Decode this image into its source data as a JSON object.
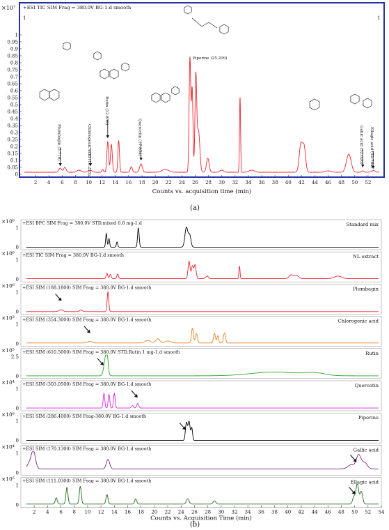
{
  "chart_data": [
    {
      "type": "line",
      "panel_label": "(a)",
      "title": "+ESI TIC SIM Frag = 380.0V BG-1.d smooth",
      "xlabel": "Counts vs. acquisition time (min)",
      "ylabel_multiplier": "×10⁷",
      "xlim": [
        0,
        54
      ],
      "ylim": [
        0,
        1.15
      ],
      "x_ticks": [
        2,
        4,
        6,
        8,
        10,
        12,
        14,
        16,
        18,
        20,
        22,
        24,
        26,
        28,
        30,
        32,
        34,
        36,
        38,
        40,
        42,
        44,
        46,
        48,
        50,
        52
      ],
      "y_ticks": [
        0,
        0.05,
        0.1,
        0.15,
        0.2,
        0.25,
        0.3,
        0.35,
        0.4,
        0.45,
        0.5,
        0.55,
        0.6,
        0.65,
        0.7,
        0.75,
        0.8,
        0.85,
        0.9,
        0.95,
        1
      ],
      "y_tick_labels": [
        "0",
        "0.05",
        "0.1",
        "0.15",
        "0.2",
        "0.25",
        "0.3",
        "0.35",
        "0.4",
        "0.45",
        "0.5",
        "0.55",
        "0.6",
        "0.65",
        "0.7",
        "0.75",
        "0.8",
        "0.85",
        "0.9",
        "0.95",
        "1"
      ],
      "series": [
        {
          "color": "#e8242b",
          "baseline": 0.015,
          "peaks": [
            {
              "t": 5.7,
              "h": 0.03,
              "w": 0.2
            },
            {
              "t": 6.4,
              "h": 0.035,
              "w": 0.2
            },
            {
              "t": 8.5,
              "h": 0.015,
              "w": 0.3
            },
            {
              "t": 10.2,
              "h": 0.015,
              "w": 0.3
            },
            {
              "t": 12.1,
              "h": 0.02,
              "w": 0.12
            },
            {
              "t": 12.85,
              "h": 0.22,
              "w": 0.13
            },
            {
              "t": 13.4,
              "h": 0.2,
              "w": 0.14
            },
            {
              "t": 14.5,
              "h": 0.225,
              "w": 0.12
            },
            {
              "t": 16.4,
              "h": 0.04,
              "w": 0.15
            },
            {
              "t": 17.85,
              "h": 0.06,
              "w": 0.2
            },
            {
              "t": 21.5,
              "h": 0.02,
              "w": 0.5
            },
            {
              "t": 25.21,
              "h": 0.82,
              "w": 0.12
            },
            {
              "t": 25.55,
              "h": 0.6,
              "w": 0.12
            },
            {
              "t": 26.1,
              "h": 0.68,
              "w": 0.13
            },
            {
              "t": 26.5,
              "h": 0.3,
              "w": 0.2
            },
            {
              "t": 27.9,
              "h": 0.1,
              "w": 0.2
            },
            {
              "t": 30.0,
              "h": 0.015,
              "w": 0.3
            },
            {
              "t": 32.75,
              "h": 0.54,
              "w": 0.08
            },
            {
              "t": 34.5,
              "h": 0.015,
              "w": 0.4
            },
            {
              "t": 41.9,
              "h": 0.2,
              "w": 0.25
            },
            {
              "t": 42.4,
              "h": 0.17,
              "w": 0.22
            },
            {
              "t": 46.0,
              "h": 0.01,
              "w": 0.4
            },
            {
              "t": 49.1,
              "h": 0.13,
              "w": 0.35
            },
            {
              "t": 51.2,
              "h": 0.01,
              "w": 0.2
            },
            {
              "t": 52.8,
              "h": 0.012,
              "w": 0.3
            }
          ]
        }
      ],
      "annotations": [
        {
          "text": "Plumbagin (5.716)",
          "x": 5.716,
          "y": 0.04
        },
        {
          "text": "Chlorogenic acid (10.255)",
          "x": 10.255,
          "y": 0.04
        },
        {
          "text": "Rutin (12.850)",
          "x": 12.85,
          "y": 0.24
        },
        {
          "text": "Quercetin (17.854)",
          "x": 17.854,
          "y": 0.08
        },
        {
          "text": "Piperine (25.209)",
          "x": 25.209,
          "y": 0.82
        },
        {
          "text": "Gallic acid (52.026)",
          "x": 51.2,
          "y": 0.03
        },
        {
          "text": "Ellagic acid (52.764)",
          "x": 52.764,
          "y": 0.02
        }
      ],
      "corner_marks": [
        "1",
        "1"
      ]
    },
    {
      "type": "line",
      "panel_label": "(b)",
      "xlabel": "Counts vs. Acquisition Time (min)",
      "xlim": [
        0,
        54
      ],
      "x_ticks": [
        2,
        4,
        6,
        8,
        10,
        12,
        14,
        16,
        18,
        20,
        22,
        24,
        26,
        28,
        30,
        32,
        34,
        36,
        38,
        40,
        42,
        44,
        46,
        48,
        50,
        52,
        54
      ],
      "tracks": [
        {
          "title": "+ESI BPC SIM Frag = 380.0V STD.mixed 0.6 mg-1.d",
          "compound": "Standard mix",
          "mult": "×10⁶",
          "ytop": "1",
          "ytick_labels": [
            "1",
            "0"
          ],
          "color": "#000000",
          "baseline": 0.02,
          "peaks": [
            {
              "t": 12.8,
              "h": 0.65,
              "w": 0.1
            },
            {
              "t": 13.2,
              "h": 0.4,
              "w": 0.1
            },
            {
              "t": 14.4,
              "h": 0.25,
              "w": 0.1
            },
            {
              "t": 17.6,
              "h": 0.92,
              "w": 0.12
            },
            {
              "t": 24.8,
              "h": 0.95,
              "w": 0.22
            },
            {
              "t": 25.3,
              "h": 0.55,
              "w": 0.18
            }
          ]
        },
        {
          "title": "+ESI TIC SIM Frag = 380.0V BG-1.d smooth",
          "compound": "NL extract",
          "mult": "×10⁶",
          "ytop": "1",
          "ytick_labels": [
            "1",
            "0"
          ],
          "color": "#e8242b",
          "baseline": 0.06,
          "peaks": [
            {
              "t": 12.9,
              "h": 0.25,
              "w": 0.12
            },
            {
              "t": 13.4,
              "h": 0.2,
              "w": 0.12
            },
            {
              "t": 14.5,
              "h": 0.22,
              "w": 0.12
            },
            {
              "t": 25.2,
              "h": 0.82,
              "w": 0.15
            },
            {
              "t": 25.7,
              "h": 0.6,
              "w": 0.15
            },
            {
              "t": 26.1,
              "h": 0.65,
              "w": 0.15
            },
            {
              "t": 27.9,
              "h": 0.12,
              "w": 0.2
            },
            {
              "t": 32.75,
              "h": 0.6,
              "w": 0.08
            },
            {
              "t": 40.5,
              "h": 0.18,
              "w": 0.3
            },
            {
              "t": 41.3,
              "h": 0.15,
              "w": 0.3
            },
            {
              "t": 47.5,
              "h": 0.12,
              "w": 0.5
            }
          ]
        },
        {
          "title": "+ESI SIM (188.1800) SIM Frag = 380.0V BG-1.d smooth",
          "compound": "Plumbagin",
          "mult": "×10⁶",
          "ytop": "1",
          "ytick_labels": [
            "1",
            "0"
          ],
          "color": "#e8242b",
          "baseline": 0.02,
          "peaks": [
            {
              "t": 6.0,
              "h": 0.08,
              "w": 0.3
            },
            {
              "t": 9.0,
              "h": 0.08,
              "w": 0.2
            },
            {
              "t": 13.05,
              "h": 0.95,
              "w": 0.12
            }
          ]
        },
        {
          "title": "+ESI SIM (354.3000) SIM Frag = 380.0V BG-1.d smooth",
          "compound": "Chlorogenic acid",
          "mult": "×10³",
          "ytop": "1",
          "ytick_labels": [
            "1",
            "0"
          ],
          "color": "#f07d1e",
          "baseline": 0.06,
          "peaks": [
            {
              "t": 10.3,
              "h": 0.08,
              "w": 0.3
            },
            {
              "t": 19.0,
              "h": 0.12,
              "w": 0.4
            },
            {
              "t": 20.5,
              "h": 0.2,
              "w": 0.3
            },
            {
              "t": 22.0,
              "h": 0.1,
              "w": 0.4
            },
            {
              "t": 25.7,
              "h": 0.7,
              "w": 0.15
            },
            {
              "t": 26.3,
              "h": 0.45,
              "w": 0.15
            },
            {
              "t": 29.0,
              "h": 0.45,
              "w": 0.15
            },
            {
              "t": 29.5,
              "h": 0.35,
              "w": 0.12
            },
            {
              "t": 30.5,
              "h": 0.48,
              "w": 0.15
            }
          ]
        },
        {
          "title": "+ESI SIM (610.5000) SIM Frag = 380.0V STD.Rutin 1 mg-1.d smooth",
          "compound": "Rutin",
          "mult": "×10⁵",
          "ytop": "2.5",
          "ytick_labels": [
            "2.5",
            "0"
          ],
          "color": "#2aa62a",
          "baseline": 0.03,
          "peaks": [
            {
              "t": 12.7,
              "h": 0.88,
              "w": 0.25
            },
            {
              "t": 12.95,
              "h": 0.5,
              "w": 0.15
            },
            {
              "t": 38.0,
              "h": 0.18,
              "w": 3.5
            },
            {
              "t": 44.0,
              "h": 0.12,
              "w": 1.5
            }
          ]
        },
        {
          "title": "+ESI SIM (303.0500) SIM Frag = 380.0V BG-1.d smooth",
          "compound": "Quercetin",
          "mult": "×10⁴",
          "ytop": "1",
          "ytick_labels": [
            "1",
            "0"
          ],
          "color": "#dd22dd",
          "baseline": 0.03,
          "peaks": [
            {
              "t": 12.45,
              "h": 0.7,
              "w": 0.12
            },
            {
              "t": 13.2,
              "h": 0.65,
              "w": 0.12
            },
            {
              "t": 14.0,
              "h": 0.7,
              "w": 0.12
            },
            {
              "t": 16.7,
              "h": 0.12,
              "w": 0.15
            },
            {
              "t": 17.5,
              "h": 0.22,
              "w": 0.15
            }
          ]
        },
        {
          "title": "+ESI SIM (286.4000) SIM Frag-380.0V BG-1.d smooth",
          "compound": "Piperine",
          "mult": "×10⁶",
          "ytop": "1",
          "ytick_labels": [
            "1",
            "0"
          ],
          "color": "#000000",
          "baseline": 0.02,
          "peaks": [
            {
              "t": 24.8,
              "h": 0.85,
              "w": 0.15
            },
            {
              "t": 25.2,
              "h": 0.9,
              "w": 0.15
            },
            {
              "t": 25.6,
              "h": 0.6,
              "w": 0.12
            }
          ]
        },
        {
          "title": "+ESI SIM (170.1300) SIM Frag = 380.0V BG-1.d smooth",
          "compound": "Gallic acid",
          "mult": "×10⁴",
          "ytop": "1",
          "ytick_labels": [
            "1",
            "0"
          ],
          "color": "#7b1f80",
          "baseline": 0.2,
          "peaks": [
            {
              "t": 1.9,
              "h": 0.75,
              "w": 0.3
            },
            {
              "t": 1.4,
              "h": 0.3,
              "w": 0.4
            },
            {
              "t": 13.05,
              "h": 0.45,
              "w": 0.25
            },
            {
              "t": 49.5,
              "h": 0.2,
              "w": 0.5
            },
            {
              "t": 50.6,
              "h": 0.65,
              "w": 0.35
            },
            {
              "t": 51.5,
              "h": 0.3,
              "w": 0.4
            }
          ]
        },
        {
          "title": "+ESI SIM (111.0300) SIM Frag = 380.0V BG-1.d smooth",
          "compound": "Ellagic acid",
          "mult": "×10⁵",
          "ytop": "1",
          "ytick_labels": [
            "1",
            "0"
          ],
          "color": "#1a6b1a",
          "baseline": 0.06,
          "peaks": [
            {
              "t": 5.3,
              "h": 0.3,
              "w": 0.15
            },
            {
              "t": 6.9,
              "h": 0.8,
              "w": 0.15
            },
            {
              "t": 8.9,
              "h": 0.85,
              "w": 0.15
            },
            {
              "t": 12.9,
              "h": 0.45,
              "w": 0.15
            },
            {
              "t": 17.2,
              "h": 0.25,
              "w": 0.15
            },
            {
              "t": 25.0,
              "h": 0.25,
              "w": 0.2
            },
            {
              "t": 29.0,
              "h": 0.15,
              "w": 0.2
            },
            {
              "t": 49.9,
              "h": 0.35,
              "w": 0.2
            },
            {
              "t": 50.4,
              "h": 0.95,
              "w": 0.2
            },
            {
              "t": 51.0,
              "h": 0.6,
              "w": 0.2
            }
          ]
        }
      ]
    }
  ]
}
